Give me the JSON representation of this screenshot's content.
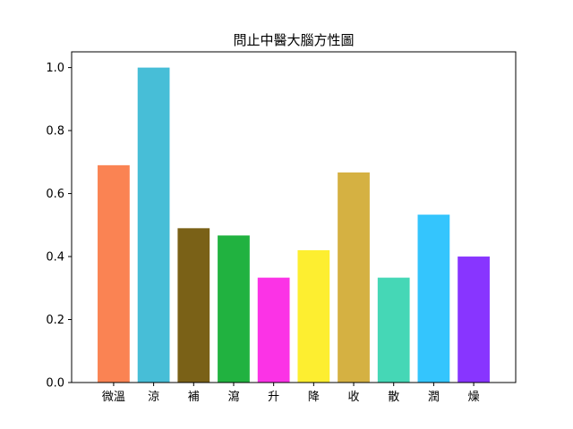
{
  "chart_data": {
    "type": "bar",
    "title": "問止中醫大腦方性圖",
    "xlabel": "",
    "ylabel": "",
    "categories": [
      "微溫",
      "涼",
      "補",
      "瀉",
      "升",
      "降",
      "收",
      "散",
      "潤",
      "燥"
    ],
    "values": [
      0.69,
      1.0,
      0.49,
      0.467,
      0.333,
      0.42,
      0.667,
      0.333,
      0.533,
      0.4
    ],
    "colors": [
      "#FA8353",
      "#47BED7",
      "#7A6117",
      "#21B240",
      "#FB33E6",
      "#FDEE30",
      "#D5B142",
      "#45D7B6",
      "#34C5FD",
      "#8835FF"
    ],
    "ylim": [
      0,
      1.05
    ],
    "yticks": [
      0.0,
      0.2,
      0.4,
      0.6,
      0.8,
      1.0
    ],
    "ytick_labels": [
      "0.0",
      "0.2",
      "0.4",
      "0.6",
      "0.8",
      "1.0"
    ],
    "grid": false,
    "legend": "none"
  }
}
